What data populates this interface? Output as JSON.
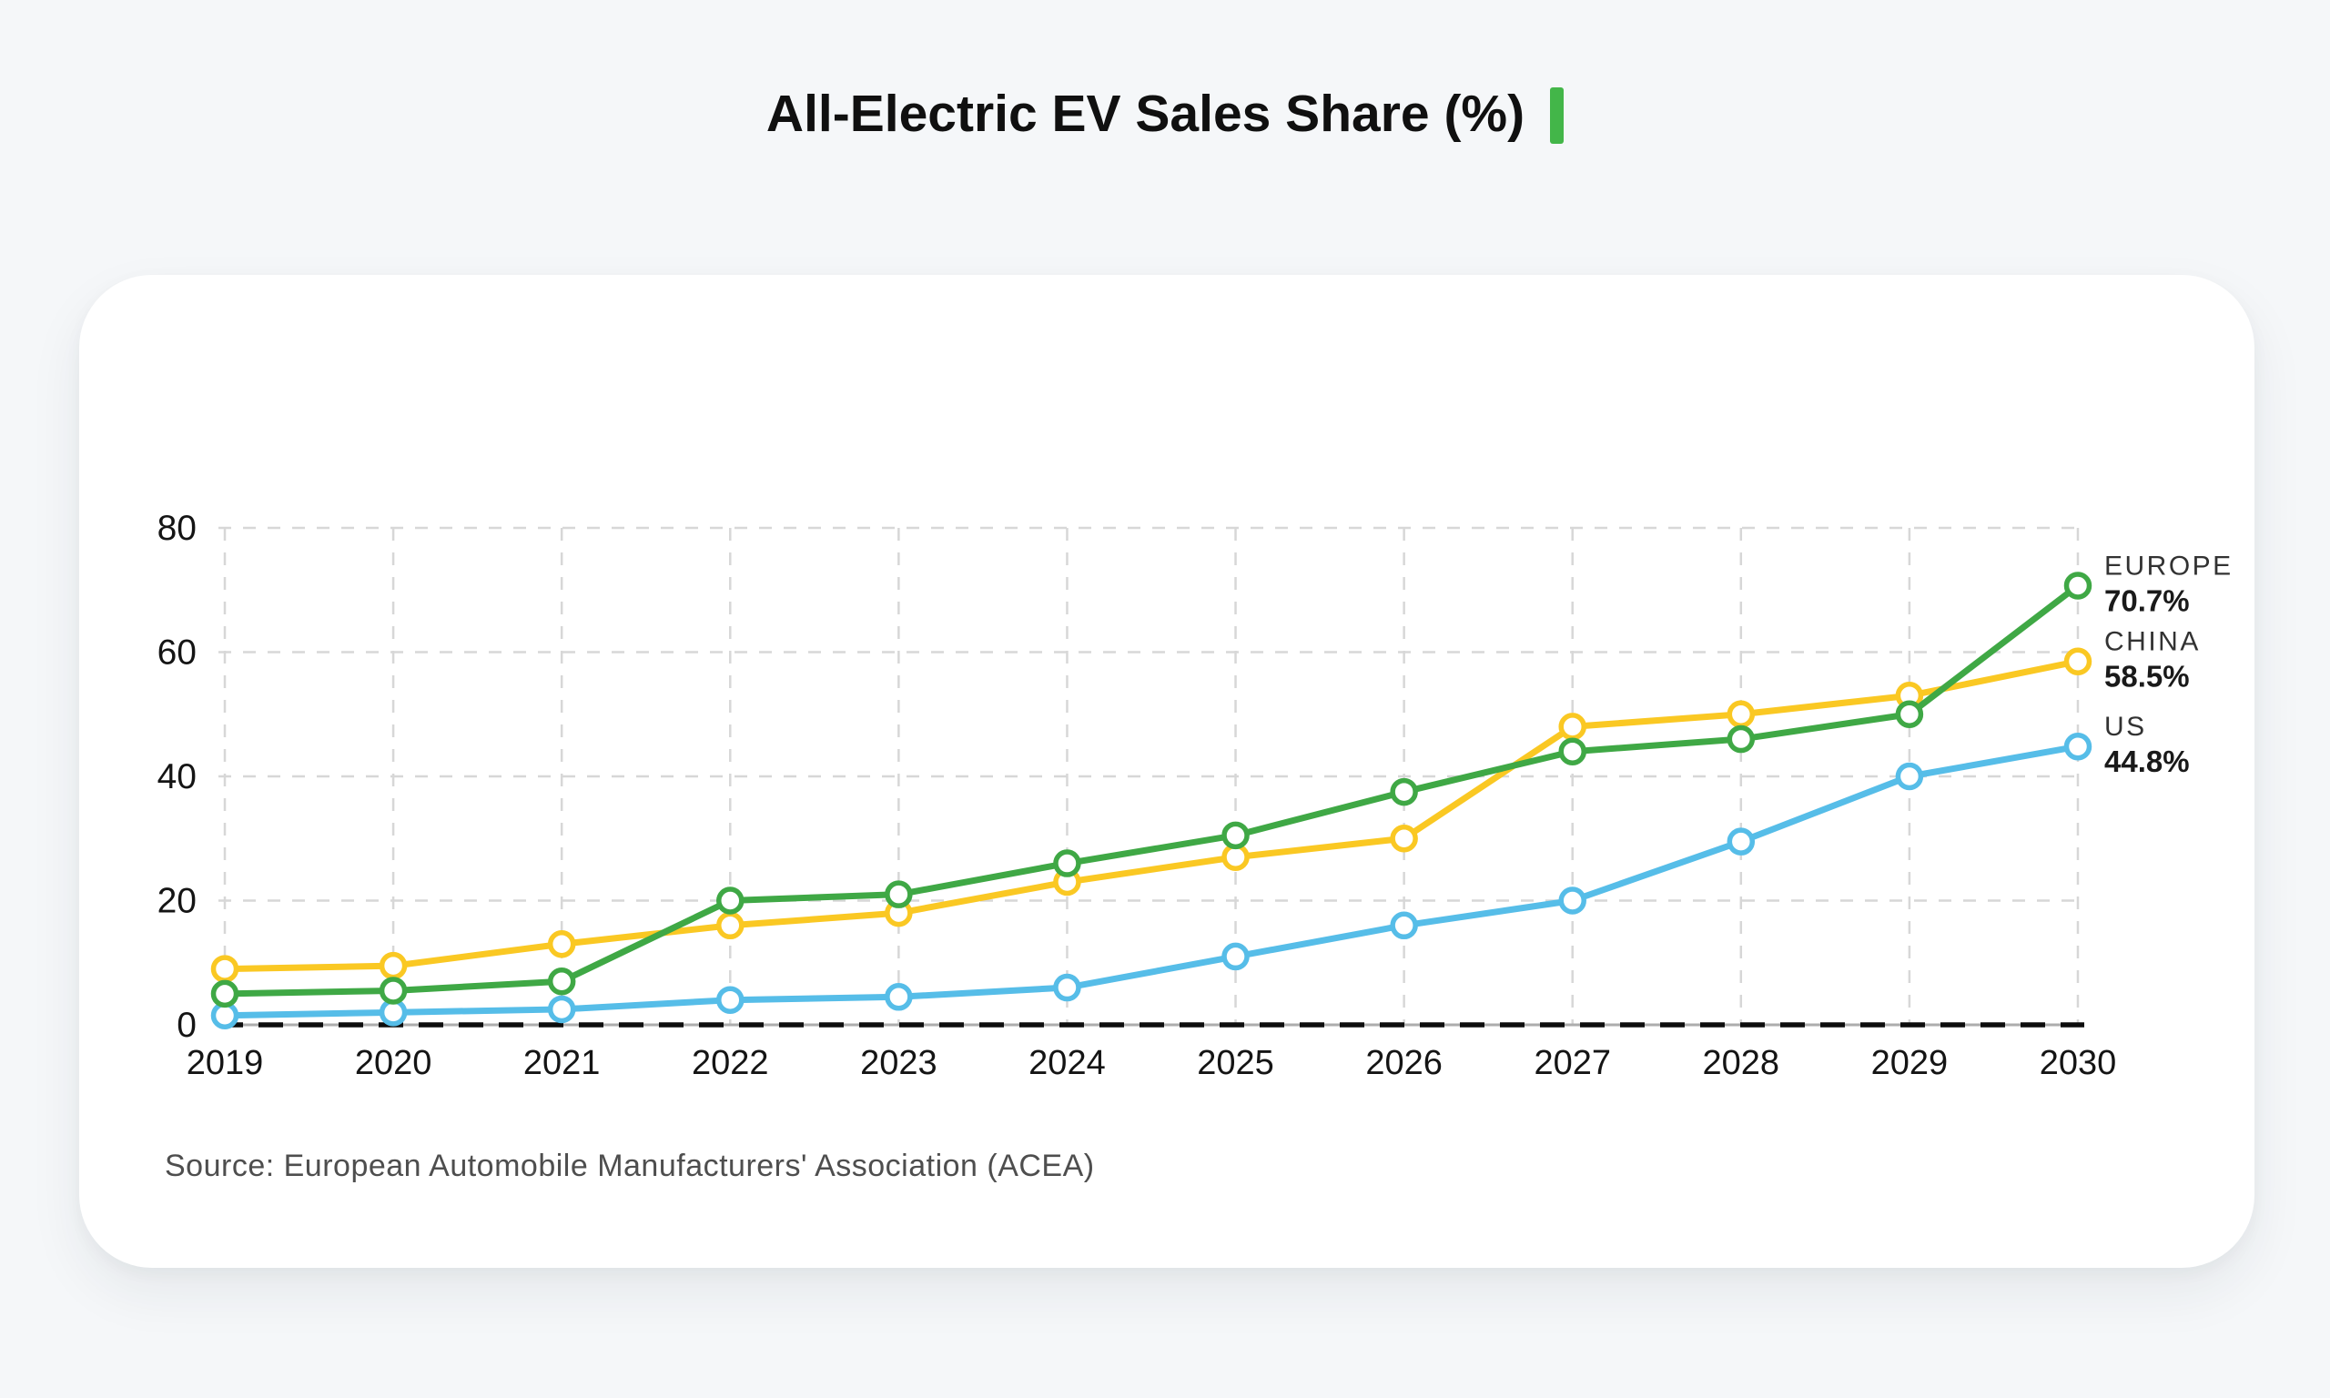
{
  "title": "All-Electric EV Sales Share (%)",
  "source": "Source: European Automobile Manufacturers' Association (ACEA)",
  "colors": {
    "page_bg": "#F5F7F9",
    "card_bg": "#FFFFFF",
    "accent_bar": "#43B649",
    "grid": "#D7D7D7",
    "baseline_under": "#ADADAD",
    "baseline_dash": "#0D0D0D",
    "title_text": "#101010",
    "axis_text": "#141414",
    "source_text": "#4E4E4E"
  },
  "chart_data": {
    "type": "line",
    "title": "All-Electric EV Sales Share (%)",
    "xlabel": "",
    "ylabel": "",
    "categories": [
      "2019",
      "2020",
      "2021",
      "2022",
      "2023",
      "2024",
      "2025",
      "2026",
      "2027",
      "2028",
      "2029",
      "2030"
    ],
    "ylim": [
      0,
      80
    ],
    "yticks": [
      0,
      20,
      40,
      60,
      80
    ],
    "grid": true,
    "legend_position": "right-end-labels",
    "series": [
      {
        "name": "EUROPE",
        "color": "#3FA845",
        "end_label": "70.7%",
        "values": [
          5,
          5.5,
          7,
          20,
          21,
          26,
          30.5,
          37.5,
          44,
          46,
          50,
          70.7
        ]
      },
      {
        "name": "CHINA",
        "color": "#FAC823",
        "end_label": "58.5%",
        "values": [
          9,
          9.5,
          13,
          16,
          18,
          23,
          27,
          30,
          48,
          50,
          53,
          58.5
        ]
      },
      {
        "name": "US",
        "color": "#56BDE8",
        "end_label": "44.8%",
        "values": [
          1.5,
          2,
          2.5,
          4,
          4.5,
          6,
          11,
          16,
          20,
          29.5,
          40,
          44.8
        ]
      }
    ]
  }
}
